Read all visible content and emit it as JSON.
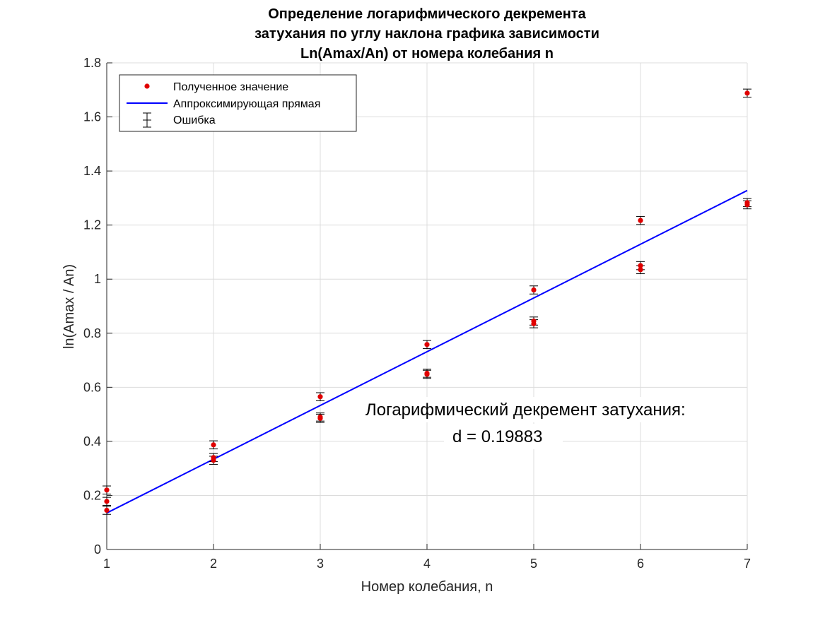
{
  "chart_data": {
    "type": "scatter",
    "title": [
      "Определение логарифмического декремента",
      "затухания по углу наклона графика зависимости",
      "Ln(Amax/An) от номера колебания n"
    ],
    "xlabel": "Номер колебания, n",
    "ylabel": "ln(Amax / An)",
    "xlim": [
      1,
      7
    ],
    "ylim": [
      0,
      1.8
    ],
    "x_ticks": [
      "1",
      "2",
      "3",
      "4",
      "5",
      "6",
      "7"
    ],
    "y_ticks": [
      "0",
      "0.2",
      "0.4",
      "0.6",
      "0.8",
      "1",
      "1.2",
      "1.4",
      "1.6",
      "1.8"
    ],
    "grid": true,
    "legend_position": "top-left",
    "series": [
      {
        "name": "Полученное значение",
        "kind": "points",
        "color": "#e00000",
        "x": [
          1,
          1,
          1,
          2,
          2,
          2,
          3,
          3,
          3,
          4,
          4,
          4,
          5,
          5,
          5,
          6,
          6,
          6,
          7,
          7,
          7
        ],
        "y": [
          0.22,
          0.178,
          0.145,
          0.387,
          0.34,
          0.33,
          0.565,
          0.49,
          0.485,
          0.758,
          0.652,
          0.648,
          0.96,
          0.845,
          0.835,
          1.217,
          1.05,
          1.035,
          1.688,
          1.283,
          1.275
        ]
      },
      {
        "name": "Аппроксимирующая прямая",
        "kind": "line",
        "color": "#0000ff",
        "x": [
          1,
          7
        ],
        "y": [
          0.135,
          1.328
        ]
      },
      {
        "name": "Ошибка",
        "kind": "errorbar",
        "color": "#000000",
        "error": 0.015
      }
    ],
    "annotations": [
      "Логарифмический декремент затухания:",
      "d = 0.19883"
    ]
  }
}
